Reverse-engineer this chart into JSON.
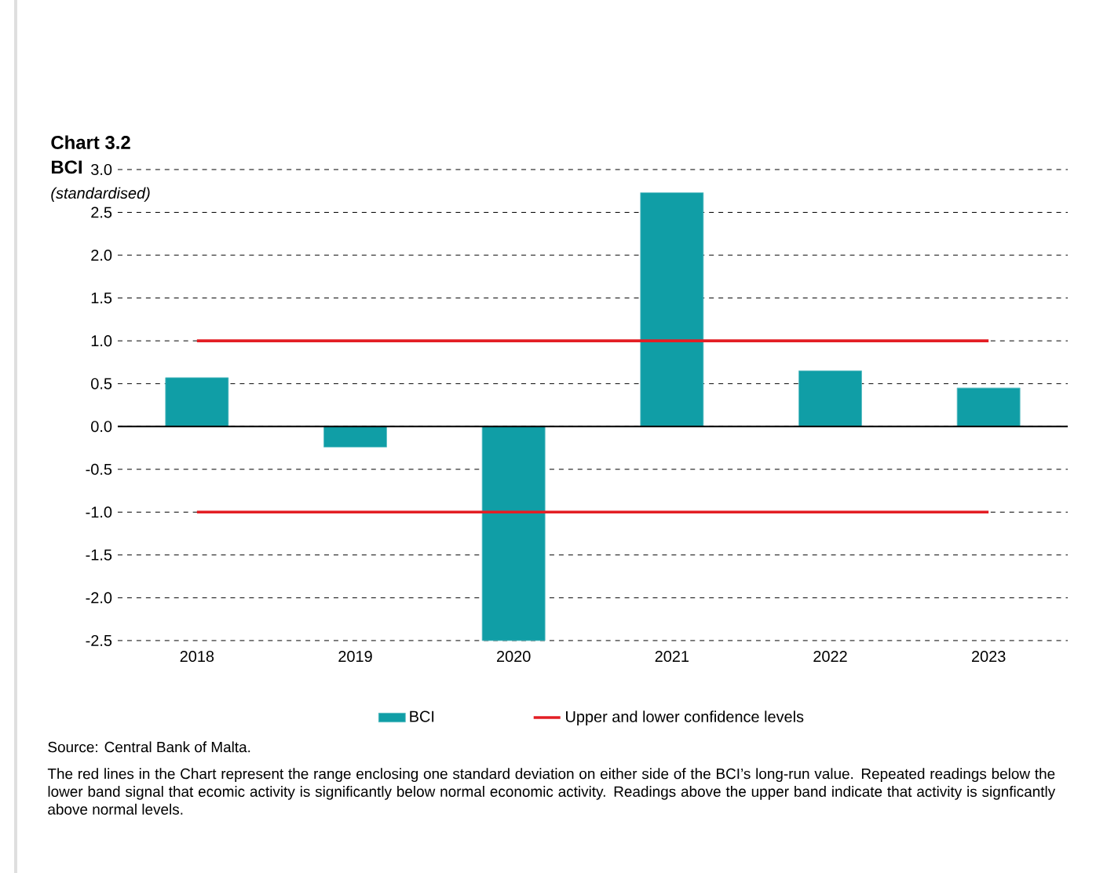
{
  "chart_data": {
    "type": "bar",
    "title": "Chart 3.2",
    "subtitle": "BCI",
    "ylabel": "(standardised)",
    "categories": [
      "2018",
      "2019",
      "2020",
      "2021",
      "2022",
      "2023"
    ],
    "series": [
      {
        "name": "BCI",
        "color": "#109ea6",
        "values": [
          0.57,
          -0.24,
          -2.5,
          2.73,
          0.65,
          0.45
        ]
      },
      {
        "name": "Upper and lower confidence levels",
        "type": "line",
        "color": "#e31e24",
        "values": [
          1,
          1,
          1,
          1,
          1,
          1
        ]
      },
      {
        "type": "line",
        "color": "#e31e24",
        "values": [
          -1,
          -1,
          -1,
          -1,
          -1,
          -1
        ]
      }
    ],
    "ylim": [
      -2.5,
      3.0
    ],
    "yticks": [
      {
        "value": -2.5,
        "label": "-2.5"
      },
      {
        "value": -2,
        "label": "-2.0"
      },
      {
        "value": -1.5,
        "label": "-1.5"
      },
      {
        "value": -1,
        "label": "-1.0"
      },
      {
        "value": -0.5,
        "label": "-0.5"
      },
      {
        "value": 0,
        "label": "0.0"
      },
      {
        "value": 0.5,
        "label": "0.5"
      },
      {
        "value": 1,
        "label": "1.0"
      },
      {
        "value": 1.5,
        "label": "1.5"
      },
      {
        "value": 2,
        "label": "2.0"
      },
      {
        "value": 2.5,
        "label": "2.5"
      },
      {
        "value": 3,
        "label": "3.0"
      }
    ],
    "grid": "y",
    "legend": "bottom",
    "marker": "none",
    "line_style": "solid",
    "annotations": [
      "Source: Central Bank of Malta.",
      "The red lines in the Chart represent the range enclosing one standard deviation on either side of the BCI’s long-run value. Repeated readings below the lower band signal that ecomic activity is significantly below normal economic activity. Readings above the upper band indicate that activity is signficantly above normal levels."
    ]
  }
}
